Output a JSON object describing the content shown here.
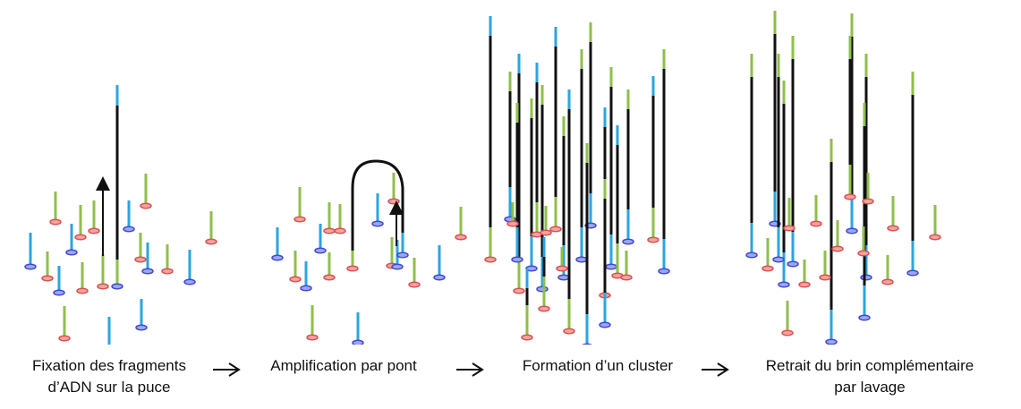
{
  "steps": [
    {
      "line1": "Fixation des fragments",
      "line2": "d’ADN sur la puce"
    },
    {
      "line1": "Amplification par pont",
      "line2": ""
    },
    {
      "line1": "Formation d’un cluster",
      "line2": ""
    },
    {
      "line1": "Retrait du brin complémentaire",
      "line2": "par lavage"
    }
  ],
  "colors": {
    "green_strand": "#8fbf4a",
    "blue_strand": "#29a6e0",
    "black_strand": "#111111",
    "red_anchor_fill": "#f2a3a3",
    "red_anchor_stroke": "#d9534f",
    "blue_anchor_fill": "#9fa6ef",
    "blue_anchor_stroke": "#3f4bd1"
  }
}
